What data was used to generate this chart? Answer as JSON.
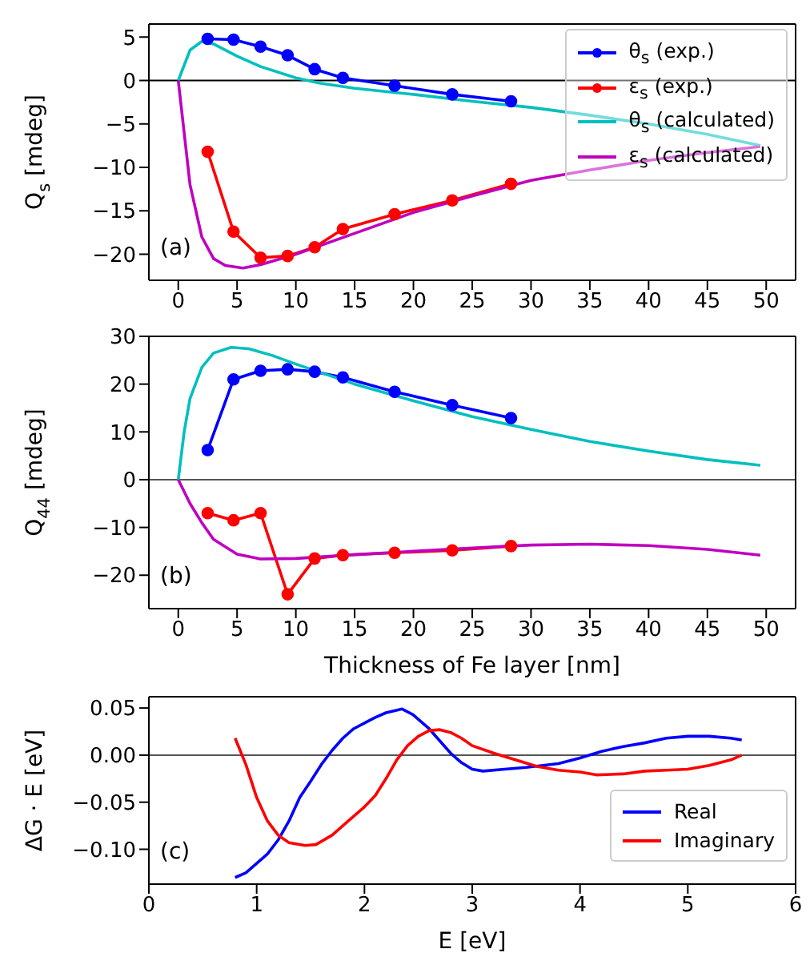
{
  "chart_data": [
    {
      "type": "line",
      "ylabel": "Q$_{s}$ [mdeg]",
      "xlim": [
        -2.5,
        52.5
      ],
      "xticks": [
        0,
        5,
        10,
        15,
        20,
        25,
        30,
        35,
        40,
        45,
        50
      ],
      "ylim": [
        -23,
        6.5
      ],
      "yticks": [
        -20,
        -15,
        -10,
        -5,
        0,
        5
      ],
      "legend": "top right",
      "annotations": [
        "(a)"
      ],
      "ref_lines": [
        {
          "axis": "y",
          "value": 0,
          "color": "#000000"
        }
      ],
      "series": [
        {
          "name": "θ$_{s}$ (exp.)",
          "color": "#0000ff",
          "marker": "circle",
          "x": [
            2.5,
            4.7,
            7,
            9.3,
            11.6,
            14,
            18.4,
            23.3,
            28.3
          ],
          "values": [
            4.8,
            4.7,
            3.9,
            2.9,
            1.3,
            0.3,
            -0.6,
            -1.6,
            -2.4
          ]
        },
        {
          "name": "ε$_{s}$ (exp.)",
          "color": "#ff0000",
          "marker": "circle",
          "x": [
            2.5,
            4.7,
            7,
            9.3,
            11.6,
            14,
            18.4,
            23.3,
            28.3
          ],
          "values": [
            -8.2,
            -17.4,
            -20.4,
            -20.2,
            -19.2,
            -17.1,
            -15.4,
            -13.8,
            -11.9
          ]
        },
        {
          "name": "θ$_{s}$ (calculated)",
          "color": "#00bfbf",
          "marker": "none",
          "x": [
            0,
            1,
            2,
            3,
            5,
            7,
            10,
            12,
            15,
            20,
            25,
            30,
            35,
            40,
            45,
            49.5
          ],
          "values": [
            0,
            3.5,
            4.5,
            4.2,
            2.8,
            1.6,
            0.3,
            -0.3,
            -0.9,
            -1.6,
            -2.4,
            -3.1,
            -4,
            -5,
            -6.2,
            -7.5
          ]
        },
        {
          "name": "ε$_{s}$ (calculated)",
          "color": "#bf00bf",
          "marker": "none",
          "x": [
            0,
            0.5,
            1,
            2,
            3,
            4,
            5.5,
            7,
            10,
            15,
            20,
            25,
            30,
            35,
            40,
            45,
            49.5
          ],
          "values": [
            0,
            -6,
            -12,
            -18,
            -20.5,
            -21.3,
            -21.6,
            -21.2,
            -20,
            -17.6,
            -15.2,
            -13.3,
            -11.5,
            -10.3,
            -9.2,
            -8.3,
            -7.6
          ]
        }
      ]
    },
    {
      "type": "line",
      "ylabel": "Q$_{44}$ [mdeg]",
      "xlabel": "Thickness of Fe layer [nm]",
      "xlim": [
        -2.5,
        52.5
      ],
      "xticks": [
        0,
        5,
        10,
        15,
        20,
        25,
        30,
        35,
        40,
        45,
        50
      ],
      "ylim": [
        -27,
        30
      ],
      "yticks": [
        -20,
        -10,
        0,
        10,
        20,
        30
      ],
      "annotations": [
        "(b)"
      ],
      "ref_lines": [
        {
          "axis": "y",
          "value": 0,
          "color": "#555555"
        }
      ],
      "series": [
        {
          "color": "#0000ff",
          "marker": "circle",
          "x": [
            2.5,
            4.7,
            7,
            9.3,
            11.6,
            14,
            18.4,
            23.3,
            28.3
          ],
          "values": [
            6.2,
            21,
            22.8,
            23.1,
            22.6,
            21.4,
            18.4,
            15.6,
            12.9
          ]
        },
        {
          "color": "#ff0000",
          "marker": "circle",
          "x": [
            2.5,
            4.7,
            7,
            9.3,
            11.6,
            14,
            18.4,
            23.3,
            28.3
          ],
          "values": [
            -7,
            -8.5,
            -7,
            -24,
            -16.5,
            -15.8,
            -15.3,
            -14.8,
            -13.9
          ]
        },
        {
          "color": "#00bfbf",
          "marker": "none",
          "x": [
            0,
            0.5,
            1,
            2,
            3,
            4.5,
            6,
            8,
            10,
            15,
            20,
            25,
            30,
            35,
            40,
            45,
            49.5
          ],
          "values": [
            0,
            10,
            17,
            23.5,
            26.5,
            27.7,
            27.4,
            26,
            24.2,
            20,
            16.5,
            13.2,
            10.5,
            8,
            6,
            4.2,
            3
          ]
        },
        {
          "color": "#bf00bf",
          "marker": "none",
          "x": [
            0,
            1,
            2,
            3,
            5,
            7,
            10,
            15,
            20,
            25,
            30,
            35,
            40,
            45,
            49.5
          ],
          "values": [
            0,
            -5,
            -9,
            -12.5,
            -15.6,
            -16.6,
            -16.5,
            -15.7,
            -15,
            -14.3,
            -13.7,
            -13.5,
            -13.8,
            -14.6,
            -15.8
          ]
        }
      ]
    },
    {
      "type": "line",
      "ylabel": "ΔG · E [eV]",
      "xlabel": "E [eV]",
      "xlim": [
        0,
        6
      ],
      "xticks": [
        0,
        1,
        2,
        3,
        4,
        5,
        6
      ],
      "ylim": [
        -0.137,
        0.062
      ],
      "yticks": [
        {
          "value": -0.1,
          "label": "−0.10"
        },
        {
          "value": -0.05,
          "label": "−0.05"
        },
        {
          "value": 0,
          "label": "0.00"
        },
        {
          "value": 0.05,
          "label": "0.05"
        }
      ],
      "legend": "bottom right",
      "annotations": [
        "(c)"
      ],
      "ref_lines": [
        {
          "axis": "y",
          "value": 0,
          "color": "#555555"
        }
      ],
      "series": [
        {
          "name": "Real",
          "color": "#0000ff",
          "marker": "none",
          "x": [
            0.8,
            0.9,
            1.0,
            1.1,
            1.2,
            1.3,
            1.4,
            1.5,
            1.6,
            1.7,
            1.8,
            1.9,
            2.0,
            2.1,
            2.2,
            2.35,
            2.45,
            2.6,
            2.7,
            2.8,
            2.9,
            3.0,
            3.1,
            3.3,
            3.5,
            3.8,
            4.0,
            4.2,
            4.4,
            4.6,
            4.8,
            5.0,
            5.2,
            5.4,
            5.5
          ],
          "values": [
            -0.13,
            -0.125,
            -0.115,
            -0.105,
            -0.09,
            -0.07,
            -0.045,
            -0.028,
            -0.01,
            0.005,
            0.018,
            0.028,
            0.034,
            0.04,
            0.045,
            0.049,
            0.043,
            0.028,
            0.015,
            0.002,
            -0.008,
            -0.015,
            -0.017,
            -0.015,
            -0.013,
            -0.009,
            -0.003,
            0.004,
            0.009,
            0.013,
            0.018,
            0.02,
            0.02,
            0.018,
            0.016
          ]
        },
        {
          "name": "Imaginary",
          "color": "#ff0000",
          "marker": "none",
          "x": [
            0.8,
            0.9,
            1.0,
            1.1,
            1.2,
            1.3,
            1.45,
            1.55,
            1.7,
            1.85,
            2.0,
            2.1,
            2.2,
            2.3,
            2.4,
            2.5,
            2.6,
            2.7,
            2.8,
            2.9,
            3.0,
            3.2,
            3.4,
            3.6,
            3.8,
            4.0,
            4.15,
            4.4,
            4.6,
            4.8,
            5.0,
            5.2,
            5.4,
            5.5
          ],
          "values": [
            0.018,
            -0.01,
            -0.045,
            -0.07,
            -0.085,
            -0.093,
            -0.096,
            -0.095,
            -0.085,
            -0.07,
            -0.055,
            -0.043,
            -0.025,
            -0.005,
            0.01,
            0.02,
            0.026,
            0.027,
            0.024,
            0.018,
            0.01,
            0.002,
            -0.005,
            -0.012,
            -0.016,
            -0.018,
            -0.021,
            -0.02,
            -0.017,
            -0.016,
            -0.015,
            -0.011,
            -0.005,
            0
          ]
        }
      ]
    }
  ]
}
